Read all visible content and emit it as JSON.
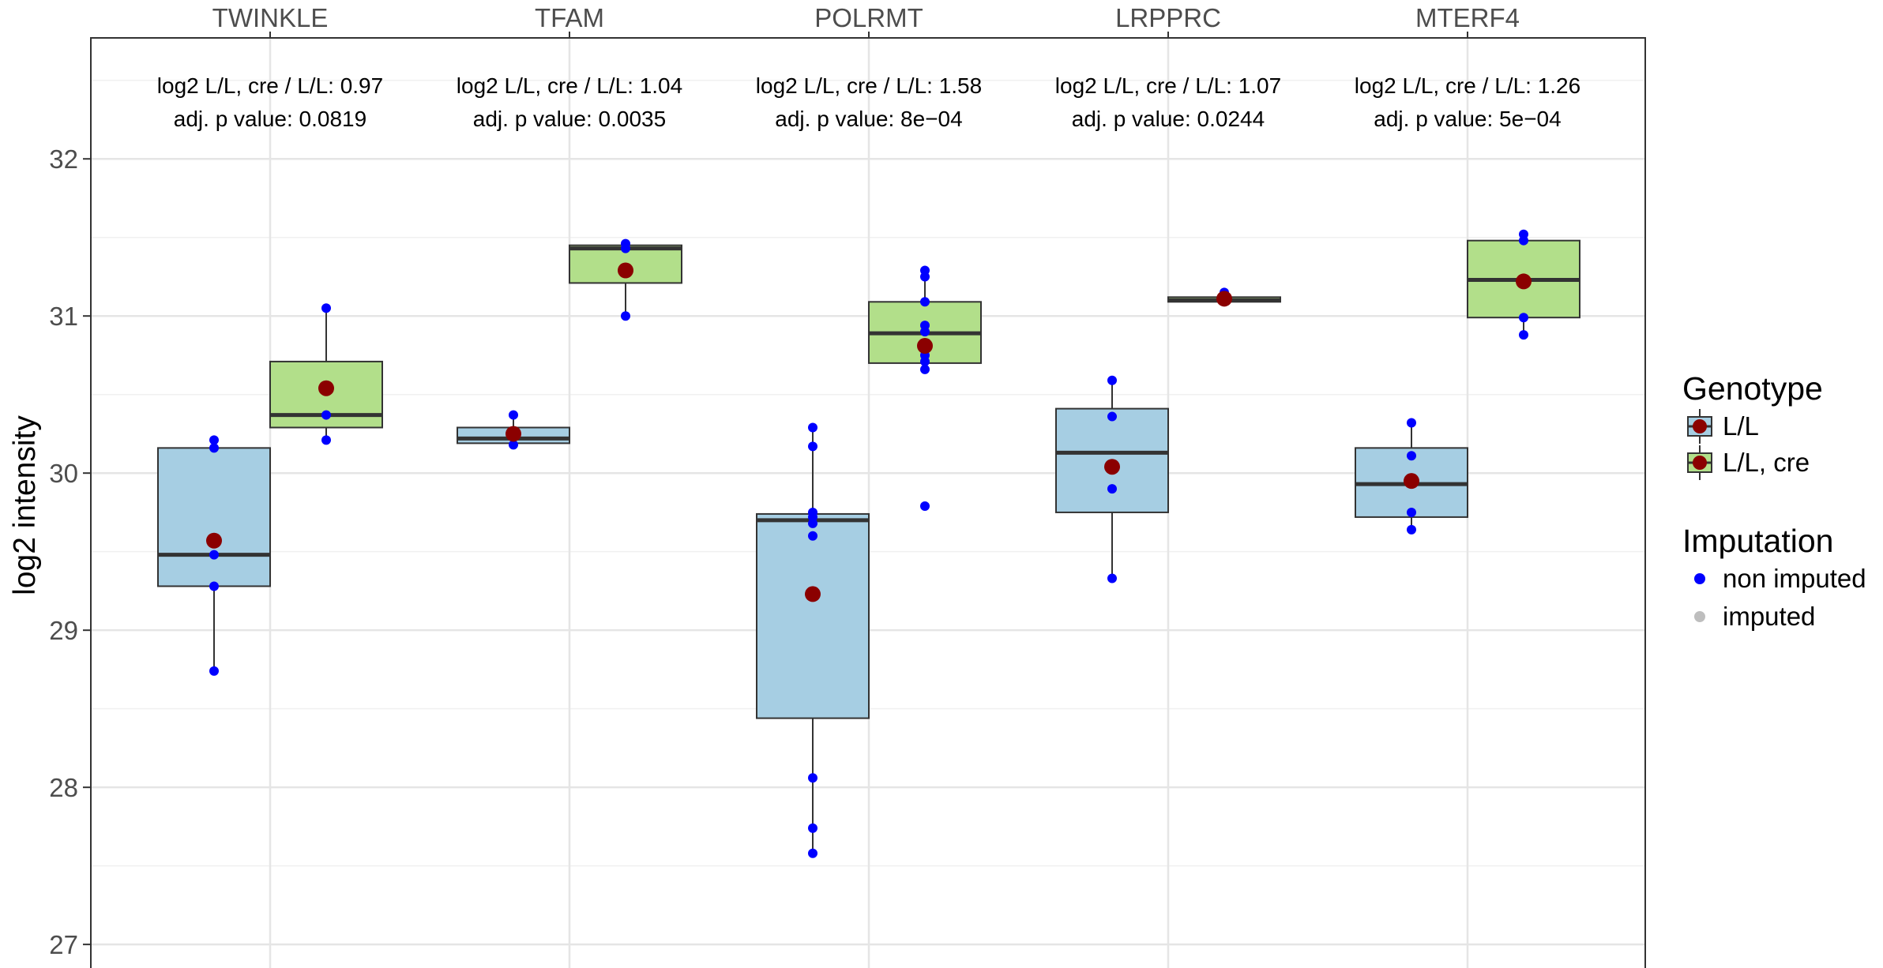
{
  "chart_data": {
    "type": "boxplot",
    "ylabel": "log2 intensity",
    "ylim": [
      26.85,
      32.77
    ],
    "yticks": [
      27,
      28,
      29,
      30,
      31,
      32
    ],
    "categories": [
      "TWINKLE",
      "TFAM",
      "POLRMT",
      "LRPPRC",
      "MTERF4"
    ],
    "grid": true,
    "legend_position": "right",
    "series": [
      {
        "name": "L/L",
        "color": "#a6cee3",
        "groups": [
          {
            "whisker_low": 28.74,
            "q1": 29.28,
            "median": 29.48,
            "q3": 30.16,
            "whisker_high": 30.21,
            "mean": 29.57,
            "points": [
              30.21,
              30.16,
              29.48,
              29.28,
              28.74
            ]
          },
          {
            "whisker_low": 30.18,
            "q1": 30.19,
            "median": 30.22,
            "q3": 30.29,
            "whisker_high": 30.37,
            "mean": 30.25,
            "points": [
              30.37,
              30.18
            ]
          },
          {
            "whisker_low": 27.58,
            "q1": 28.44,
            "median": 29.7,
            "q3": 29.74,
            "whisker_high": 30.29,
            "mean": 29.23,
            "points": [
              30.29,
              30.17,
              29.75,
              29.72,
              29.68,
              29.6,
              28.06,
              27.74,
              27.58
            ]
          },
          {
            "whisker_low": 29.33,
            "q1": 29.75,
            "median": 30.13,
            "q3": 30.41,
            "whisker_high": 30.59,
            "mean": 30.04,
            "points": [
              30.59,
              30.36,
              29.9,
              29.33
            ]
          },
          {
            "whisker_low": 29.64,
            "q1": 29.72,
            "median": 29.93,
            "q3": 30.16,
            "whisker_high": 30.32,
            "mean": 29.95,
            "points": [
              30.32,
              30.11,
              29.75,
              29.64
            ]
          }
        ]
      },
      {
        "name": "L/L, cre",
        "color": "#b2df8a",
        "groups": [
          {
            "whisker_low": 30.21,
            "q1": 30.29,
            "median": 30.37,
            "q3": 30.71,
            "whisker_high": 31.05,
            "mean": 30.54,
            "points": [
              31.05,
              30.37,
              30.21
            ]
          },
          {
            "whisker_low": 31.0,
            "q1": 31.21,
            "median": 31.43,
            "q3": 31.45,
            "whisker_high": 31.46,
            "mean": 31.29,
            "points": [
              31.46,
              31.43,
              31.0
            ]
          },
          {
            "whisker_low": 30.66,
            "q1": 30.7,
            "median": 30.89,
            "q3": 31.09,
            "whisker_high": 31.29,
            "mean": 30.81,
            "points": [
              31.29,
              31.25,
              31.09,
              30.94,
              30.9,
              30.75,
              30.71,
              30.66,
              29.79
            ]
          },
          {
            "whisker_low": 31.09,
            "q1": 31.09,
            "median": 31.1,
            "q3": 31.12,
            "whisker_high": 31.15,
            "mean": 31.11,
            "points": [
              31.15,
              31.1
            ]
          },
          {
            "whisker_low": 30.88,
            "q1": 30.99,
            "median": 31.23,
            "q3": 31.48,
            "whisker_high": 31.52,
            "mean": 31.22,
            "points": [
              31.52,
              31.48,
              30.99,
              30.88
            ]
          }
        ]
      }
    ],
    "annotations": [
      {
        "category": "TWINKLE",
        "line1": "log2 L/L, cre / L/L: 0.97",
        "line2": "adj. p value: 0.0819"
      },
      {
        "category": "TFAM",
        "line1": "log2 L/L, cre / L/L: 1.04",
        "line2": "adj. p value: 0.0035"
      },
      {
        "category": "POLRMT",
        "line1": "log2 L/L, cre / L/L: 1.58",
        "line2": "adj. p value: 8e−04"
      },
      {
        "category": "LRPPRC",
        "line1": "log2 L/L, cre / L/L: 1.07",
        "line2": "adj. p value: 0.0244"
      },
      {
        "category": "MTERF4",
        "line1": "log2 L/L, cre / L/L: 1.26",
        "line2": "adj. p value: 5e−04"
      }
    ],
    "legend": {
      "genotype_title": "Genotype",
      "genotype_items": [
        {
          "label": "L/L",
          "fill": "#a6cee3",
          "mean_color": "#8b0000"
        },
        {
          "label": "L/L, cre",
          "fill": "#b2df8a",
          "mean_color": "#8b0000"
        }
      ],
      "imputation_title": "Imputation",
      "imputation_items": [
        {
          "label": "non imputed",
          "color": "#0000ff"
        },
        {
          "label": "imputed",
          "color": "#bebebe"
        }
      ]
    },
    "mean_color": "#8b0000",
    "point_color": "#0000ff"
  }
}
